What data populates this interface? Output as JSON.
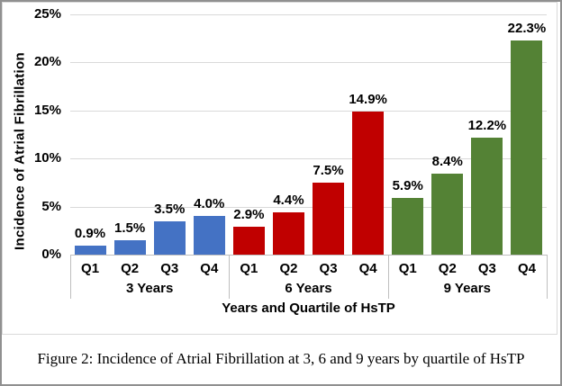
{
  "caption": "Figure 2: Incidence of Atrial Fibrillation at 3, 6 and 9 years by quartile of HsTP",
  "colors": {
    "blue": "#4472C4",
    "red": "#C00000",
    "green": "#548235",
    "gridline": "#D9D9D9",
    "axis": "#BFBFBF",
    "outer_border": "#909090",
    "chart_border": "#D9D9D9",
    "text": "#000000"
  },
  "chart_data": {
    "type": "bar",
    "title": "",
    "xlabel": "Years and Quartile of HsTP",
    "ylabel": "Incidence of Atrial Fibrillation",
    "ylim": [
      0,
      25
    ],
    "yticks": [
      0,
      5,
      10,
      15,
      20,
      25
    ],
    "ytick_labels": [
      "0%",
      "5%",
      "10%",
      "15%",
      "20%",
      "25%"
    ],
    "grid": "horizontal",
    "legend": "none",
    "series": [
      {
        "name": "3 Years",
        "color": "#4472C4",
        "categories": [
          "Q1",
          "Q2",
          "Q3",
          "Q4"
        ],
        "values": [
          0.9,
          1.5,
          3.5,
          4.0
        ],
        "value_labels": [
          "0.9%",
          "1.5%",
          "3.5%",
          "4.0%"
        ]
      },
      {
        "name": "6 Years",
        "color": "#C00000",
        "categories": [
          "Q1",
          "Q2",
          "Q3",
          "Q4"
        ],
        "values": [
          2.9,
          4.4,
          7.5,
          14.9
        ],
        "value_labels": [
          "2.9%",
          "4.4%",
          "7.5%",
          "14.9%"
        ]
      },
      {
        "name": "9 Years",
        "color": "#548235",
        "categories": [
          "Q1",
          "Q2",
          "Q3",
          "Q4"
        ],
        "values": [
          5.9,
          8.4,
          12.2,
          22.3
        ],
        "value_labels": [
          "5.9%",
          "8.4%",
          "12.2%",
          "22.3%"
        ]
      }
    ]
  }
}
